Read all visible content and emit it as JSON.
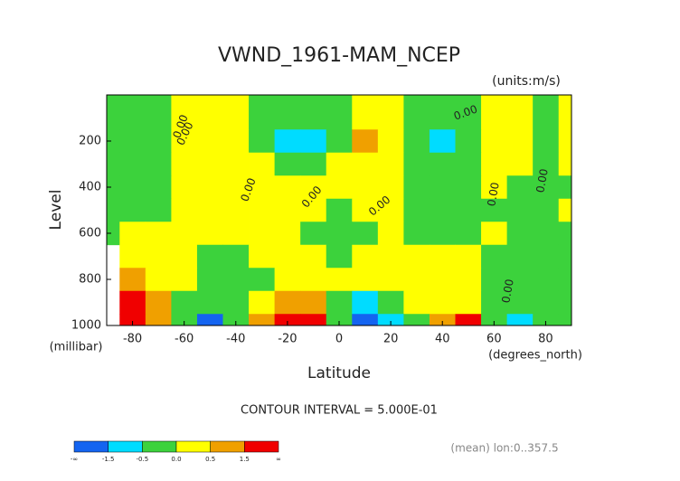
{
  "chart_data": {
    "type": "filled-contour",
    "title": "VWND_1961-MAM_NCEP",
    "units": "(units:m/s)",
    "y_label": "Level",
    "y_unit": "(millibar)",
    "x_label": "Latitude",
    "x_unit": "(degrees_north)",
    "contour_interval": "CONTOUR INTERVAL = 5.000E-01",
    "footnote": "(mean) lon:0..357.5",
    "xlim": [
      -90,
      90
    ],
    "xticks": [
      -80,
      -60,
      -40,
      -20,
      0,
      20,
      40,
      60,
      80
    ],
    "ylim": [
      0,
      1000
    ],
    "y_reversed": true,
    "yticks": [
      200,
      400,
      600,
      800,
      1000
    ],
    "x": [
      -90,
      -80,
      -70,
      -60,
      -50,
      -40,
      -30,
      -20,
      -10,
      0,
      10,
      20,
      30,
      40,
      50,
      60,
      70,
      80,
      90
    ],
    "levels": [
      100,
      200,
      300,
      400,
      500,
      600,
      700,
      800,
      900,
      1000
    ],
    "z": [
      [
        -0.2,
        -0.2,
        -0.2,
        0.1,
        0.2,
        0.2,
        -0.1,
        -0.2,
        -0.2,
        -0.1,
        0.2,
        0.1,
        -0.1,
        -0.2,
        -0.2,
        0.1,
        0.2,
        -0.1,
        0.2
      ],
      [
        -0.2,
        -0.2,
        -0.1,
        0.2,
        0.3,
        0.2,
        -0.2,
        -0.6,
        -0.7,
        -0.1,
        0.7,
        0.3,
        -0.2,
        -0.6,
        -0.2,
        0.2,
        0.2,
        -0.2,
        0.2
      ],
      [
        -0.2,
        -0.2,
        -0.1,
        0.2,
        0.3,
        0.2,
        0.1,
        -0.2,
        -0.2,
        0.1,
        0.3,
        0.2,
        -0.1,
        -0.2,
        -0.1,
        0.2,
        0.1,
        -0.2,
        0.2
      ],
      [
        -0.2,
        -0.3,
        -0.2,
        0.1,
        0.3,
        0.3,
        0.2,
        0.1,
        0.2,
        0.2,
        0.2,
        0.1,
        -0.1,
        -0.2,
        -0.2,
        0.1,
        -0.1,
        -0.2,
        -0.1
      ],
      [
        -0.2,
        -0.3,
        -0.2,
        0.1,
        0.3,
        0.2,
        0.1,
        0.2,
        0.2,
        -0.1,
        0.1,
        0.2,
        -0.1,
        -0.2,
        -0.2,
        -0.1,
        -0.2,
        -0.2,
        0.1
      ],
      [
        -0.1,
        0.1,
        0.2,
        0.2,
        0.3,
        0.2,
        0.1,
        0.1,
        -0.1,
        -0.2,
        -0.1,
        0.2,
        -0.1,
        -0.2,
        -0.1,
        0.1,
        -0.2,
        -0.1,
        -0.1
      ],
      [
        null,
        0.3,
        0.2,
        0.2,
        -0.1,
        -0.2,
        0.1,
        0.2,
        0.1,
        -0.1,
        0.1,
        0.2,
        0.1,
        0.2,
        0.1,
        -0.1,
        -0.2,
        -0.2,
        -0.1
      ],
      [
        null,
        0.8,
        0.3,
        0.1,
        -0.2,
        -0.2,
        -0.1,
        0.2,
        0.1,
        0.2,
        0.2,
        0.2,
        0.3,
        0.2,
        0.1,
        -0.1,
        -0.1,
        -0.2,
        -0.1
      ],
      [
        null,
        1.6,
        0.7,
        -0.2,
        -0.4,
        -0.2,
        0.3,
        0.6,
        0.7,
        -0.2,
        -0.6,
        -0.4,
        0.1,
        0.4,
        0.2,
        -0.1,
        -0.2,
        -0.1,
        -0.2
      ],
      [
        null,
        1.8,
        0.6,
        -0.2,
        -1.6,
        -0.4,
        0.6,
        1.6,
        1.8,
        -0.2,
        -1.7,
        -1.2,
        -0.1,
        0.6,
        1.6,
        -0.2,
        -0.6,
        -0.2,
        -0.1
      ]
    ],
    "colorbar": {
      "bounds": [
        "-∞",
        -1.5,
        -0.5,
        {
          "value": 0,
          "label": "0.0"
        },
        0.5,
        1.5,
        "∞"
      ],
      "colors": [
        "#1464f0",
        "#00dcff",
        "#3cd23c",
        "#ffff00",
        "#f0a000",
        "#f00000"
      ]
    },
    "contour_labels": [
      "0.00",
      "0.00",
      "0.00",
      "0.00",
      "0.00",
      "0.00",
      "0.00",
      "0.00",
      "0.00"
    ]
  }
}
